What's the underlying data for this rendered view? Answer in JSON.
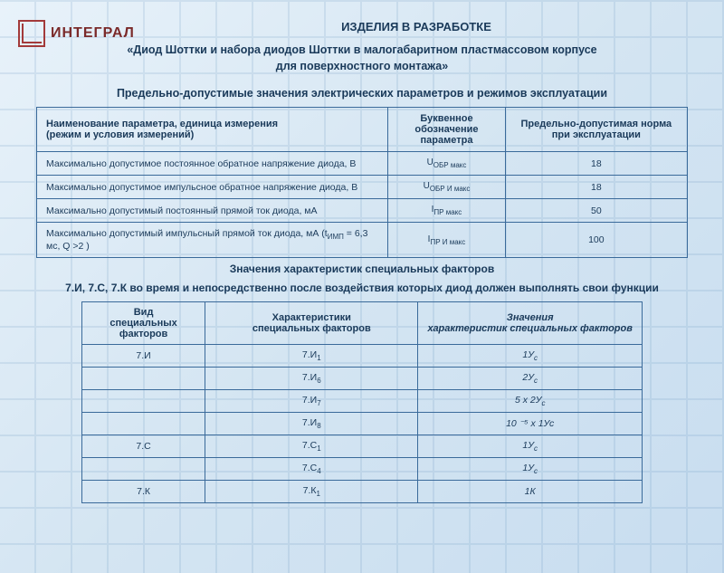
{
  "logo": {
    "brand": "ИНТЕГРАЛ"
  },
  "headings": {
    "h1": "ИЗДЕЛИЯ В РАЗРАБОТКЕ",
    "h2_line1": "«Диод Шоттки и набора диодов Шоттки в малогабаритном пластмассовом корпусе",
    "h2_line2": "для поверхностного монтажа»",
    "h3": "Предельно-допустимые  значения  электрических  параметров  и  режимов  эксплуатации",
    "mid1": "Значения характеристик специальных факторов",
    "mid2": "7.И, 7.С, 7.К  во время и непосредственно после воздействия которых диод должен выполнять свои функции"
  },
  "table1": {
    "type": "table",
    "border_color": "#3a6a9a",
    "text_color": "#1a3a5a",
    "header_fontsize": 11,
    "body_fontsize": 10.5,
    "columns": [
      {
        "label_l1": "Наименование параметра, единица измерения",
        "label_l2": "(режим и условия измерений)",
        "width_pct": 54,
        "align": "left"
      },
      {
        "label_l1": "Буквенное обозначение",
        "label_l2": "параметра",
        "width_pct": 18,
        "align": "center"
      },
      {
        "label_l1": "Предельно-допустимая норма",
        "label_l2": "при эксплуатации",
        "width_pct": 28,
        "align": "center"
      }
    ],
    "rows": [
      {
        "param": "Максимально допустимое постоянное обратное напряжение диода,  В",
        "sym_base": "U",
        "sym_sub": "ОБР макс",
        "value": "18"
      },
      {
        "param": "Максимально допустимое импульсное обратное напряжение диода,  В",
        "sym_base": "U",
        "sym_sub": "ОБР И макс",
        "value": "18"
      },
      {
        "param": "Максимально допустимый постоянный прямой ток диода,  мА",
        "sym_base": "I",
        "sym_sub": "ПР макс",
        "value": "50"
      },
      {
        "param_pre": "Максимально допустимый импульсный прямой ток диода,  мА  (t",
        "param_sub": "ИМП",
        "param_post": " = 6,3 мс, Q >2  )",
        "sym_base": "I",
        "sym_sub": "ПР И макс",
        "value": "100"
      }
    ]
  },
  "table2": {
    "type": "table",
    "border_color": "#3a6a9a",
    "text_color": "#1a3a5a",
    "header_fontsize": 11,
    "body_fontsize": 10.5,
    "columns": [
      {
        "label_l1": "Вид",
        "label_l2": "специальных факторов",
        "width_pct": 22
      },
      {
        "label_l1": "Характеристики",
        "label_l2": "специальных факторов",
        "width_pct": 38
      },
      {
        "label_l1": "Значения",
        "label_l2": "характеристик специальных факторов",
        "width_pct": 40,
        "italic": true
      }
    ],
    "rows": [
      {
        "c1": "7.И",
        "c2_base": "7.И",
        "c2_sub": "1",
        "c3_base": "1У",
        "c3_sub": "с"
      },
      {
        "c1": "",
        "c2_base": "7.И",
        "c2_sub": "6",
        "c3_base": "2У",
        "c3_sub": "с"
      },
      {
        "c1": "",
        "c2_base": "7.И",
        "c2_sub": "7",
        "c3_pre": "5 х 2У",
        "c3_sub": "с"
      },
      {
        "c1": "",
        "c2_base": "7.И",
        "c2_sub": "8",
        "c3_plain": "10 ⁻⁵ х 1Ус"
      },
      {
        "c1": "7.С",
        "c2_base": "7.С",
        "c2_sub": "1",
        "c3_base": "1У",
        "c3_sub": "с"
      },
      {
        "c1": "",
        "c2_base": "7.С",
        "c2_sub": "4",
        "c3_base": "1У",
        "c3_sub": "с"
      },
      {
        "c1": "7.К",
        "c2_base": "7.К",
        "c2_sub": "1",
        "c3_plain": "1К"
      }
    ]
  },
  "colors": {
    "background_start": "#e8f2fa",
    "background_end": "#c8ddf0",
    "grid": "#5a8cb8",
    "text": "#1a3a5a",
    "border": "#3a6a9a",
    "logo": "#7a2a2a"
  }
}
